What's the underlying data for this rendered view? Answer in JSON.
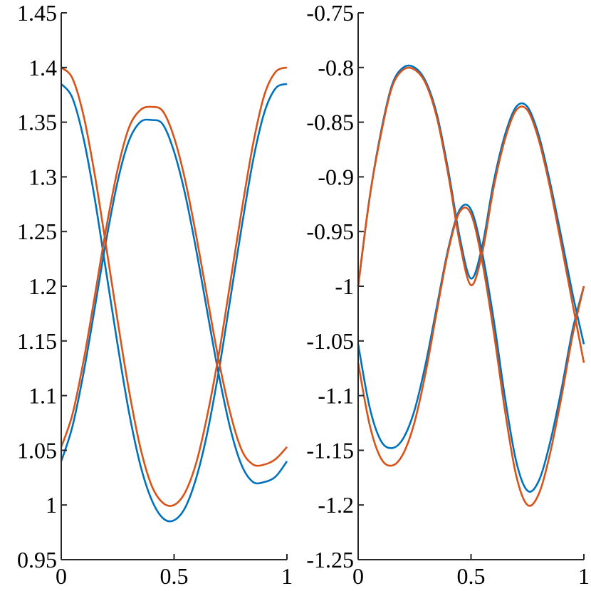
{
  "chart_data": [
    {
      "type": "line",
      "title": "",
      "xlabel": "",
      "ylabel": "",
      "xlim": [
        0,
        1
      ],
      "ylim": [
        0.95,
        1.45
      ],
      "xticks": [
        0,
        0.5,
        1
      ],
      "xtick_labels": [
        "0",
        "0.5",
        "1"
      ],
      "yticks": [
        0.95,
        1.0,
        1.05,
        1.1,
        1.15,
        1.2,
        1.25,
        1.3,
        1.35,
        1.4,
        1.45
      ],
      "ytick_labels": [
        "0.95",
        "1",
        "1.05",
        "1.1",
        "1.15",
        "1.2",
        "1.25",
        "1.3",
        "1.35",
        "1.4",
        "1.45"
      ],
      "grid": false,
      "legend": "none",
      "series": [
        {
          "color": "#0072BD",
          "x": [
            0,
            0.05,
            0.1,
            0.15,
            0.2,
            0.25,
            0.3,
            0.35,
            0.4,
            0.45,
            0.5,
            0.55,
            0.6,
            0.65,
            0.7,
            0.75,
            0.8,
            0.85,
            0.9,
            0.95,
            1
          ],
          "y": [
            1.385,
            1.372,
            1.334,
            1.278,
            1.212,
            1.146,
            1.085,
            1.037,
            1.005,
            0.988,
            0.986,
            0.998,
            1.026,
            1.069,
            1.125,
            1.19,
            1.255,
            1.315,
            1.359,
            1.381,
            1.385
          ]
        },
        {
          "color": "#0072BD",
          "x": [
            0,
            0.05,
            0.1,
            0.15,
            0.2,
            0.25,
            0.3,
            0.35,
            0.4,
            0.45,
            0.5,
            0.55,
            0.6,
            0.65,
            0.7,
            0.75,
            0.8,
            0.85,
            0.9,
            0.95,
            1
          ],
          "y": [
            1.04,
            1.072,
            1.122,
            1.182,
            1.243,
            1.296,
            1.333,
            1.35,
            1.352,
            1.348,
            1.323,
            1.283,
            1.231,
            1.173,
            1.117,
            1.069,
            1.036,
            1.021,
            1.021,
            1.026,
            1.04
          ]
        },
        {
          "color": "#D95319",
          "x": [
            0,
            0.05,
            0.1,
            0.15,
            0.2,
            0.25,
            0.3,
            0.35,
            0.4,
            0.45,
            0.5,
            0.55,
            0.6,
            0.65,
            0.7,
            0.75,
            0.8,
            0.85,
            0.9,
            0.95,
            1
          ],
          "y": [
            1.4,
            1.39,
            1.355,
            1.3,
            1.235,
            1.168,
            1.105,
            1.053,
            1.018,
            1.002,
            1.0,
            1.012,
            1.04,
            1.085,
            1.14,
            1.205,
            1.27,
            1.33,
            1.375,
            1.396,
            1.4
          ]
        },
        {
          "color": "#D95319",
          "x": [
            0,
            0.05,
            0.1,
            0.15,
            0.2,
            0.25,
            0.3,
            0.35,
            0.4,
            0.45,
            0.5,
            0.55,
            0.6,
            0.65,
            0.7,
            0.75,
            0.8,
            0.85,
            0.9,
            0.95,
            1
          ],
          "y": [
            1.053,
            1.083,
            1.133,
            1.193,
            1.254,
            1.307,
            1.345,
            1.361,
            1.364,
            1.36,
            1.336,
            1.296,
            1.244,
            1.186,
            1.13,
            1.083,
            1.05,
            1.037,
            1.037,
            1.042,
            1.053
          ]
        }
      ]
    },
    {
      "type": "line",
      "title": "",
      "xlabel": "",
      "ylabel": "",
      "xlim": [
        0,
        1
      ],
      "ylim": [
        -1.25,
        -0.75
      ],
      "xticks": [
        0,
        0.5,
        1
      ],
      "xtick_labels": [
        "0",
        "0.5",
        "1"
      ],
      "yticks": [
        -1.25,
        -1.2,
        -1.15,
        -1.1,
        -1.05,
        -1.0,
        -0.95,
        -0.9,
        -0.85,
        -0.8,
        -0.75
      ],
      "ytick_labels": [
        "-1.25",
        "-1.2",
        "-1.15",
        "-1.1",
        "-1.05",
        "-1",
        "-0.95",
        "-0.9",
        "-0.85",
        "-0.8",
        "-0.75"
      ],
      "grid": false,
      "legend": "none",
      "series": [
        {
          "color": "#0072BD",
          "x": [
            0,
            0.05,
            0.1,
            0.15,
            0.2,
            0.25,
            0.3,
            0.35,
            0.4,
            0.45,
            0.5,
            0.55,
            0.6,
            0.65,
            0.7,
            0.75,
            0.8,
            0.85,
            0.9,
            0.95,
            1
          ],
          "y": [
            -1.0,
            -0.92,
            -0.86,
            -0.816,
            -0.8,
            -0.8,
            -0.813,
            -0.844,
            -0.895,
            -0.955,
            -0.993,
            -0.963,
            -0.905,
            -0.862,
            -0.836,
            -0.836,
            -0.862,
            -0.905,
            -0.955,
            -1.007,
            -1.053
          ]
        },
        {
          "color": "#0072BD",
          "x": [
            0,
            0.05,
            0.1,
            0.15,
            0.2,
            0.25,
            0.3,
            0.35,
            0.4,
            0.45,
            0.5,
            0.55,
            0.6,
            0.65,
            0.7,
            0.75,
            0.8,
            0.85,
            0.9,
            0.95,
            1
          ],
          "y": [
            -1.053,
            -1.11,
            -1.141,
            -1.148,
            -1.139,
            -1.113,
            -1.07,
            -1.017,
            -0.965,
            -0.93,
            -0.93,
            -0.97,
            -1.03,
            -1.101,
            -1.16,
            -1.187,
            -1.178,
            -1.143,
            -1.095,
            -1.04,
            -1.0
          ]
        },
        {
          "color": "#D95319",
          "x": [
            0,
            0.05,
            0.1,
            0.15,
            0.2,
            0.25,
            0.3,
            0.35,
            0.4,
            0.45,
            0.5,
            0.55,
            0.6,
            0.65,
            0.7,
            0.75,
            0.8,
            0.85,
            0.9,
            0.95,
            1
          ],
          "y": [
            -1.0,
            -0.92,
            -0.862,
            -0.818,
            -0.802,
            -0.802,
            -0.815,
            -0.847,
            -0.899,
            -0.96,
            -0.999,
            -0.969,
            -0.91,
            -0.866,
            -0.839,
            -0.839,
            -0.866,
            -0.91,
            -0.962,
            -1.016,
            -1.07
          ]
        },
        {
          "color": "#D95319",
          "x": [
            0,
            0.05,
            0.1,
            0.15,
            0.2,
            0.25,
            0.3,
            0.35,
            0.4,
            0.45,
            0.5,
            0.55,
            0.6,
            0.65,
            0.7,
            0.75,
            0.8,
            0.85,
            0.9,
            0.95,
            1
          ],
          "y": [
            -1.07,
            -1.126,
            -1.157,
            -1.164,
            -1.153,
            -1.124,
            -1.078,
            -1.021,
            -0.967,
            -0.932,
            -0.934,
            -0.978,
            -1.041,
            -1.113,
            -1.173,
            -1.2,
            -1.19,
            -1.153,
            -1.102,
            -1.045,
            -1.0
          ]
        }
      ]
    }
  ]
}
